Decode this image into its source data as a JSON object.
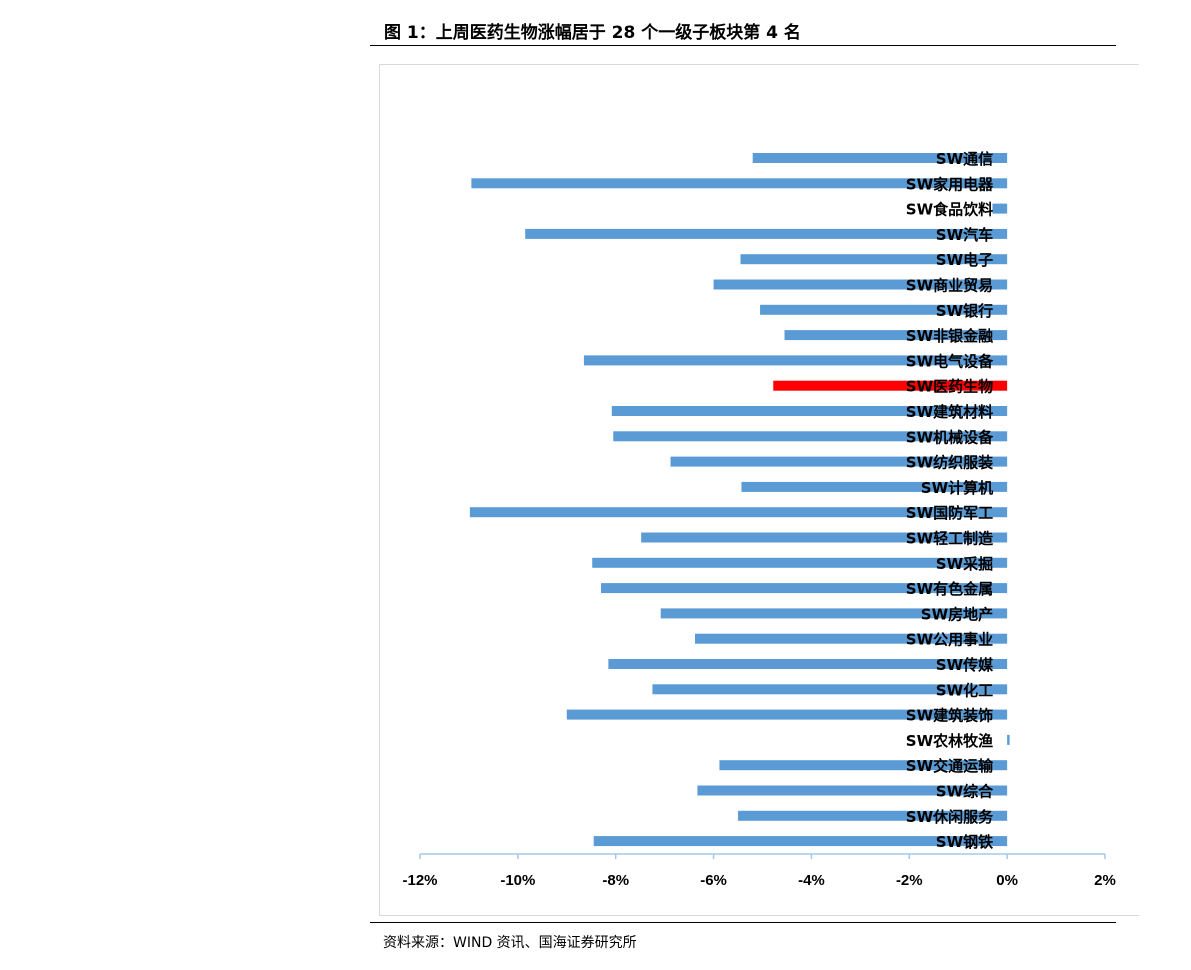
{
  "figure_title": "图 1：上周医药生物涨幅居于 28 个一级子板块第 4 名",
  "source_note": "资料来源：WIND 资讯、国海证券研究所",
  "colors": {
    "bar": "#5b9bd5",
    "highlight": "#ff0000",
    "axis": "#a6c8e8"
  },
  "chart_data": {
    "type": "bar",
    "orientation": "horizontal",
    "title": "",
    "xlabel": "",
    "ylabel": "",
    "xlim": [
      -0.12,
      0.02
    ],
    "xticks": [
      -0.12,
      -0.1,
      -0.08,
      -0.06,
      -0.04,
      -0.02,
      0,
      0.02
    ],
    "xtick_labels": [
      "-12%",
      "-10%",
      "-8%",
      "-6%",
      "-4%",
      "-2%",
      "0%",
      "2%"
    ],
    "grid": false,
    "highlight_category": "SW医药生物",
    "categories": [
      "SW通信",
      "SW家用电器",
      "SW食品饮料",
      "SW汽车",
      "SW电子",
      "SW商业贸易",
      "SW银行",
      "SW非银金融",
      "SW电气设备",
      "SW医药生物",
      "SW建筑材料",
      "SW机械设备",
      "SW纺织服装",
      "SW计算机",
      "SW国防军工",
      "SW轻工制造",
      "SW采掘",
      "SW有色金属",
      "SW房地产",
      "SW公用事业",
      "SW传媒",
      "SW化工",
      "SW建筑装饰",
      "SW农林牧渔",
      "SW交通运输",
      "SW综合",
      "SW休闲服务",
      "SW钢铁"
    ],
    "values": [
      -0.052,
      -0.1095,
      -0.003,
      -0.0985,
      -0.0545,
      -0.06,
      -0.0505,
      -0.0455,
      -0.0865,
      -0.0478,
      -0.0808,
      -0.0805,
      -0.0688,
      -0.0543,
      -0.1098,
      -0.0748,
      -0.0848,
      -0.083,
      -0.0708,
      -0.0638,
      -0.0815,
      -0.0725,
      -0.09,
      0.0005,
      -0.0588,
      -0.0633,
      -0.055,
      -0.0845
    ]
  }
}
